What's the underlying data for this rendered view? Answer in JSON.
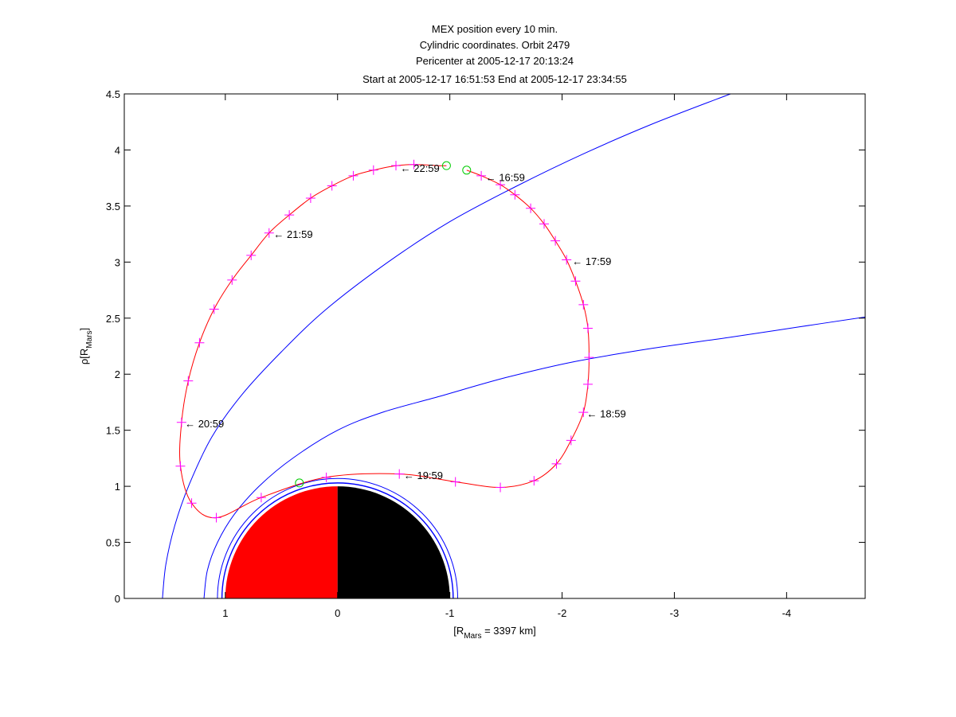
{
  "chart_data": {
    "type": "line",
    "title": [
      "MEX position every 10 min.",
      "Cylindric coordinates. Orbit 2479",
      "Pericenter at 2005-12-17 20:13:24",
      "Start at 2005-12-17 16:51:53 End at 2005-12-17 23:34:55"
    ],
    "xlabel": {
      "main": "[R",
      "sub": "Mars",
      "rest": " = 3397 km]"
    },
    "ylabel": {
      "main": "ρ[R",
      "sub": "Mars",
      "rest": "]"
    },
    "xlim": [
      1.9,
      -4.7
    ],
    "ylim": [
      0,
      4.5
    ],
    "xticks": [
      1,
      0,
      -1,
      -2,
      -3,
      -4
    ],
    "xtick_labels": [
      "1",
      "0",
      "-1",
      "-2",
      "-3",
      "-4"
    ],
    "yticks": [
      0,
      0.5,
      1,
      1.5,
      2,
      2.5,
      3,
      3.5,
      4,
      4.5
    ],
    "ytick_labels": [
      "0",
      "0.5",
      "1",
      "1.5",
      "2",
      "2.5",
      "3",
      "3.5",
      "4",
      "4.5"
    ],
    "grid": false,
    "colors": {
      "orbit": "#ff0000",
      "markers": "#ff00ff",
      "boundaries": "#0000ff",
      "endpoints": "#00cc00",
      "mars_day": "#ff0000",
      "mars_night": "#000000"
    },
    "orbit": [
      [
        -1.15,
        3.82
      ],
      [
        -1.28,
        3.77
      ],
      [
        -1.45,
        3.69
      ],
      [
        -1.58,
        3.6
      ],
      [
        -1.72,
        3.48
      ],
      [
        -1.84,
        3.34
      ],
      [
        -1.94,
        3.19
      ],
      [
        -2.04,
        3.02
      ],
      [
        -2.12,
        2.83
      ],
      [
        -2.19,
        2.62
      ],
      [
        -2.23,
        2.41
      ],
      [
        -2.24,
        2.15
      ],
      [
        -2.23,
        1.91
      ],
      [
        -2.19,
        1.66
      ],
      [
        -2.08,
        1.41
      ],
      [
        -1.95,
        1.2
      ],
      [
        -1.75,
        1.05
      ],
      [
        -1.45,
        0.99
      ],
      [
        -1.05,
        1.04
      ],
      [
        -0.55,
        1.11
      ],
      [
        0.1,
        1.08
      ],
      [
        0.68,
        0.9
      ],
      [
        1.08,
        0.72
      ],
      [
        1.3,
        0.85
      ],
      [
        1.4,
        1.18
      ],
      [
        1.39,
        1.57
      ],
      [
        1.33,
        1.94
      ],
      [
        1.23,
        2.28
      ],
      [
        1.1,
        2.58
      ],
      [
        0.94,
        2.84
      ],
      [
        0.77,
        3.06
      ],
      [
        0.61,
        3.26
      ],
      [
        0.43,
        3.42
      ],
      [
        0.24,
        3.57
      ],
      [
        0.05,
        3.68
      ],
      [
        -0.14,
        3.77
      ],
      [
        -0.32,
        3.82
      ],
      [
        -0.52,
        3.86
      ],
      [
        -0.68,
        3.87
      ],
      [
        -0.9,
        3.86
      ],
      [
        -0.97,
        3.86
      ]
    ],
    "markers": [
      [
        -1.28,
        3.77
      ],
      [
        -1.45,
        3.69
      ],
      [
        -1.58,
        3.6
      ],
      [
        -1.72,
        3.48
      ],
      [
        -1.84,
        3.34
      ],
      [
        -1.94,
        3.19
      ],
      [
        -2.04,
        3.02
      ],
      [
        -2.12,
        2.83
      ],
      [
        -2.19,
        2.62
      ],
      [
        -2.23,
        2.41
      ],
      [
        -2.24,
        2.15
      ],
      [
        -2.23,
        1.91
      ],
      [
        -2.19,
        1.66
      ],
      [
        -2.08,
        1.41
      ],
      [
        -1.95,
        1.2
      ],
      [
        -1.75,
        1.05
      ],
      [
        -1.45,
        0.99
      ],
      [
        -1.05,
        1.04
      ],
      [
        -0.55,
        1.11
      ],
      [
        0.1,
        1.08
      ],
      [
        0.68,
        0.9
      ],
      [
        1.08,
        0.72
      ],
      [
        1.3,
        0.85
      ],
      [
        1.4,
        1.18
      ],
      [
        1.39,
        1.57
      ],
      [
        1.33,
        1.94
      ],
      [
        1.23,
        2.28
      ],
      [
        1.1,
        2.58
      ],
      [
        0.94,
        2.84
      ],
      [
        0.77,
        3.06
      ],
      [
        0.61,
        3.26
      ],
      [
        0.43,
        3.42
      ],
      [
        0.24,
        3.57
      ],
      [
        0.05,
        3.68
      ],
      [
        -0.14,
        3.77
      ],
      [
        -0.32,
        3.82
      ],
      [
        -0.52,
        3.86
      ],
      [
        -0.68,
        3.87
      ]
    ],
    "endpoints": [
      [
        -1.15,
        3.82
      ],
      [
        -0.97,
        3.86
      ],
      [
        0.34,
        1.03
      ]
    ],
    "bow_shock": [
      [
        1.56,
        0.0
      ],
      [
        1.53,
        0.3
      ],
      [
        1.45,
        0.65
      ],
      [
        1.32,
        1.02
      ],
      [
        1.12,
        1.44
      ],
      [
        0.85,
        1.82
      ],
      [
        0.5,
        2.2
      ],
      [
        0.1,
        2.58
      ],
      [
        -0.45,
        3.0
      ],
      [
        -1.0,
        3.36
      ],
      [
        -1.6,
        3.68
      ],
      [
        -2.2,
        3.97
      ],
      [
        -2.8,
        4.23
      ],
      [
        -3.5,
        4.5
      ]
    ],
    "magnetopause": [
      [
        1.19,
        0.0
      ],
      [
        1.16,
        0.25
      ],
      [
        1.07,
        0.5
      ],
      [
        0.92,
        0.75
      ],
      [
        0.7,
        1.0
      ],
      [
        0.4,
        1.25
      ],
      [
        0.0,
        1.5
      ],
      [
        -0.4,
        1.66
      ],
      [
        -0.9,
        1.8
      ],
      [
        -1.5,
        1.97
      ],
      [
        -2.1,
        2.11
      ],
      [
        -2.8,
        2.23
      ],
      [
        -3.5,
        2.33
      ],
      [
        -4.1,
        2.42
      ],
      [
        -4.7,
        2.51
      ]
    ],
    "mars": {
      "radius": 1.0,
      "ring_radii": [
        1.03,
        1.07
      ]
    },
    "annotations": [
      {
        "text": "← 16:59",
        "x": -1.32,
        "y": 3.76
      },
      {
        "text": "← 17:59",
        "x": -2.09,
        "y": 3.01
      },
      {
        "text": "← 18:59",
        "x": -2.22,
        "y": 1.65
      },
      {
        "text": "← 19:59",
        "x": -0.59,
        "y": 1.1
      },
      {
        "text": "← 20:59",
        "x": 1.36,
        "y": 1.56
      },
      {
        "text": "← 21:59",
        "x": 0.57,
        "y": 3.25
      },
      {
        "text": "← 22:59",
        "x": -0.56,
        "y": 3.84
      }
    ]
  }
}
